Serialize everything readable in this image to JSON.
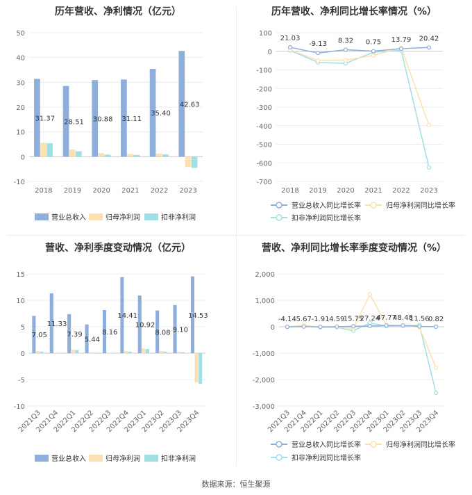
{
  "source_text": "数据来源：恒生聚源",
  "chart_data": [
    {
      "type": "bar",
      "title": "历年营收、净利情况（亿元）",
      "categories": [
        "2018",
        "2019",
        "2020",
        "2021",
        "2022",
        "2023"
      ],
      "ylim": [
        -10,
        50
      ],
      "yticks": [
        -10,
        0,
        10,
        20,
        30,
        40,
        50
      ],
      "grid": true,
      "legend_position": "bottom",
      "series": [
        {
          "name": "营业总收入",
          "color": "#8eaedb",
          "values": [
            31.37,
            28.51,
            30.88,
            31.11,
            35.4,
            42.63
          ],
          "labels": [
            "31.37",
            "28.51",
            "30.88",
            "31.11",
            "35.40",
            "42.63"
          ]
        },
        {
          "name": "归母净利润",
          "color": "#fde0b1",
          "values": [
            5.6,
            2.9,
            1.4,
            1.1,
            1.3,
            -4.2
          ]
        },
        {
          "name": "扣非净利润",
          "color": "#9fe0e4",
          "values": [
            5.4,
            2.2,
            0.8,
            0.7,
            0.9,
            -4.5
          ]
        }
      ]
    },
    {
      "type": "line",
      "title": "历年营收、净利同比增长率情况（%）",
      "categories": [
        "2018",
        "2019",
        "2020",
        "2021",
        "2022",
        "2023"
      ],
      "ylim": [
        -700,
        100
      ],
      "yticks": [
        -700,
        -600,
        -500,
        -400,
        -300,
        -200,
        -100,
        0,
        100
      ],
      "grid": true,
      "legend_position": "bottom",
      "series": [
        {
          "name": "营业总收入同比增长率",
          "color": "#8eaedb",
          "values": [
            21.03,
            -9.13,
            8.32,
            0.75,
            13.79,
            20.42
          ],
          "labels": [
            "21.03",
            "-9.13",
            "8.32",
            "0.75",
            "13.79",
            "20.42"
          ]
        },
        {
          "name": "归母净利润同比增长率",
          "color": "#fde0b1",
          "values": [
            8,
            -50,
            -48,
            -22,
            20,
            -397
          ]
        },
        {
          "name": "扣非净利润同比增长率",
          "color": "#9fe0e4",
          "values": [
            5,
            -60,
            -65,
            -5,
            5,
            -625
          ]
        }
      ]
    },
    {
      "type": "bar",
      "title": "营收、净利季度变动情况（亿元）",
      "categories": [
        "2021Q3",
        "2021Q4",
        "2022Q1",
        "2022Q2",
        "2022Q3",
        "2022Q4",
        "2023Q1",
        "2023Q2",
        "2023Q3",
        "2023Q4"
      ],
      "ylim": [
        -10,
        15
      ],
      "yticks": [
        -10,
        -5,
        0,
        5,
        10,
        15
      ],
      "grid": true,
      "legend_position": "bottom",
      "series": [
        {
          "name": "营业总收入",
          "color": "#8eaedb",
          "values": [
            7.05,
            11.33,
            7.39,
            5.44,
            8.16,
            14.41,
            10.92,
            8.08,
            9.1,
            14.53
          ],
          "labels": [
            "7.05",
            "11.33",
            "7.39",
            "5.44",
            "8.16",
            "14.41",
            "10.92",
            "8.08",
            "9.10",
            "14.53"
          ]
        },
        {
          "name": "归母净利润",
          "color": "#fde0b1",
          "values": [
            0.4,
            0.1,
            0.7,
            0.2,
            0.1,
            0.4,
            0.9,
            0.4,
            0.3,
            -5.5
          ]
        },
        {
          "name": "扣非净利润",
          "color": "#9fe0e4",
          "values": [
            0.3,
            0.0,
            0.6,
            0.1,
            0.0,
            0.3,
            0.8,
            0.3,
            0.2,
            -5.8
          ]
        }
      ]
    },
    {
      "type": "line",
      "title": "营收、净利同比增长率季度变动情况（%）",
      "categories": [
        "2021Q3",
        "2021Q4",
        "2022Q1",
        "2022Q2",
        "2022Q3",
        "2022Q4",
        "2023Q1",
        "2023Q2",
        "2023Q3",
        "2023Q4"
      ],
      "ylim": [
        -3000,
        2000
      ],
      "yticks": [
        -3000,
        -2000,
        -1000,
        0,
        1000,
        2000
      ],
      "ytick_labels": [
        "-3,000",
        "-2,000",
        "-1,000",
        "0",
        "1,000",
        "2,000"
      ],
      "grid": true,
      "legend_position": "bottom",
      "series": [
        {
          "name": "营业总收入同比增长率",
          "color": "#8eaedb",
          "values": [
            -4.14,
            5.67,
            -1.91,
            4.59,
            15.75,
            27.24,
            47.77,
            48.48,
            11.56,
            0.82
          ],
          "labels": [
            "-4.14",
            "5.67",
            "-1.91",
            "4.59",
            "15.75",
            "27.24",
            "47.77",
            "48.48",
            "11.56",
            "0.82"
          ]
        },
        {
          "name": "归母净利润同比增长率",
          "color": "#fde0b1",
          "values": [
            -10,
            60,
            -20,
            -30,
            -60,
            1230,
            60,
            40,
            -20,
            -1550
          ]
        },
        {
          "name": "扣非净利润同比增长率",
          "color": "#9fe0e4",
          "values": [
            -8,
            40,
            -30,
            -25,
            -150,
            140,
            30,
            40,
            60,
            -2500
          ]
        }
      ]
    }
  ]
}
